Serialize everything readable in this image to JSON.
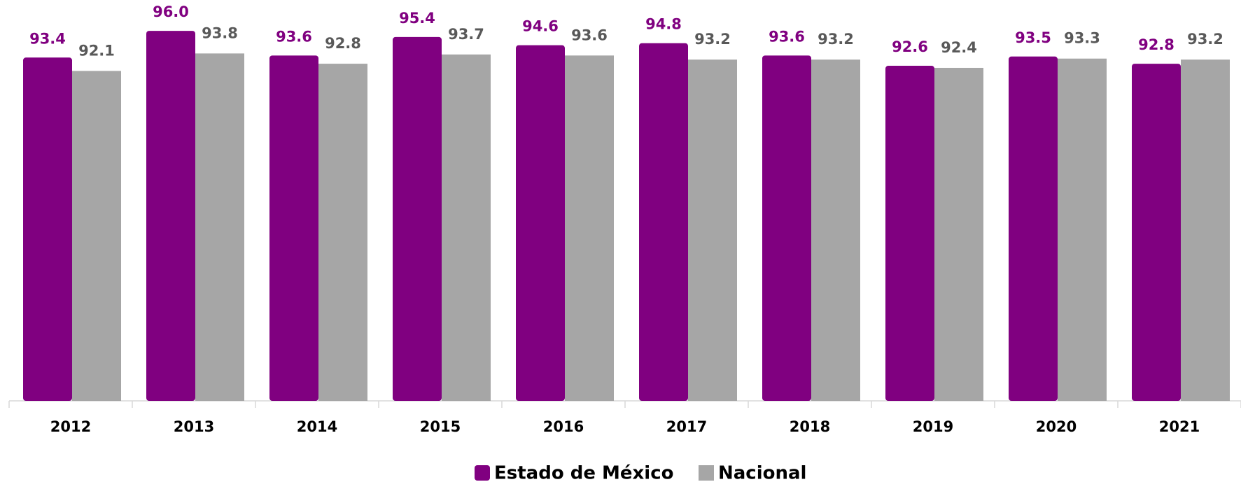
{
  "chart_data": {
    "type": "bar",
    "categories": [
      "2012",
      "2013",
      "2014",
      "2015",
      "2016",
      "2017",
      "2018",
      "2019",
      "2020",
      "2021"
    ],
    "series": [
      {
        "name": "Estado de México",
        "color": "#800080",
        "label_color": "#800080",
        "values": [
          93.4,
          96.0,
          93.6,
          95.4,
          94.6,
          94.8,
          93.6,
          92.6,
          93.5,
          92.8
        ],
        "value_labels": [
          "93.4",
          "96.0",
          "93.6",
          "95.4",
          "94.6",
          "94.8",
          "93.6",
          "92.6",
          "93.5",
          "92.8"
        ]
      },
      {
        "name": "Nacional",
        "color": "#a6a6a6",
        "label_color": "#595959",
        "values": [
          92.1,
          93.8,
          92.8,
          93.7,
          93.6,
          93.2,
          93.2,
          92.4,
          93.3,
          93.2
        ],
        "value_labels": [
          "92.1",
          "93.8",
          "92.8",
          "93.7",
          "93.6",
          "93.2",
          "93.2",
          "92.4",
          "93.3",
          "93.2"
        ]
      }
    ],
    "ylim": [
      60,
      99
    ],
    "legend": "bottom"
  }
}
